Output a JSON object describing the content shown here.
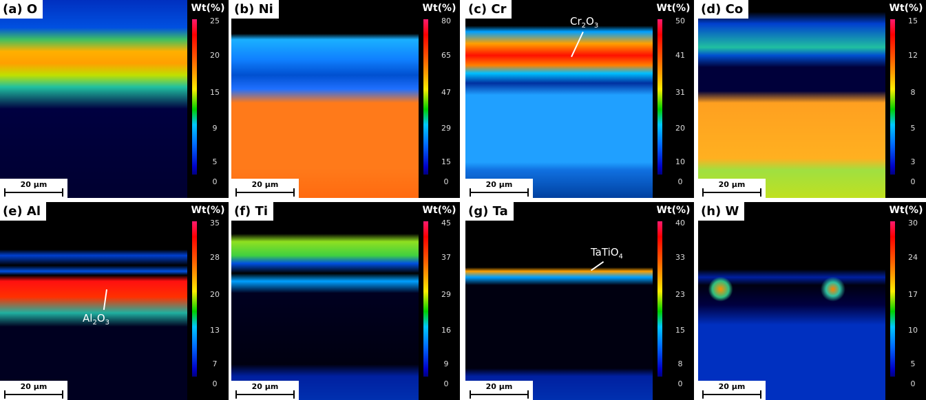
{
  "colorbar_title": "Wt(%)",
  "scale_bar": "20 μm",
  "panels": [
    {
      "label": "(a) O",
      "ticks": [
        "25",
        "20",
        "15",
        "9",
        "5",
        "0"
      ]
    },
    {
      "label": "(b) Ni",
      "ticks": [
        "80",
        "65",
        "47",
        "29",
        "15",
        "0"
      ]
    },
    {
      "label": "(c) Cr",
      "ticks": [
        "50",
        "41",
        "31",
        "20",
        "10",
        "0"
      ],
      "annotation": "Cr2O3"
    },
    {
      "label": "(d) Co",
      "ticks": [
        "15",
        "12",
        "8",
        "5",
        "3",
        "0"
      ]
    },
    {
      "label": "(e) Al",
      "ticks": [
        "35",
        "28",
        "20",
        "13",
        "7",
        "0"
      ],
      "annotation": "Al2O3"
    },
    {
      "label": "(f) Ti",
      "ticks": [
        "45",
        "37",
        "29",
        "16",
        "9",
        "0"
      ]
    },
    {
      "label": "(g) Ta",
      "ticks": [
        "40",
        "33",
        "23",
        "15",
        "8",
        "0"
      ],
      "annotation": "TaTiO4"
    },
    {
      "label": "(h) W",
      "ticks": [
        "30",
        "24",
        "17",
        "10",
        "5",
        "0"
      ]
    }
  ],
  "colors": {
    "high": "#ff1a6e",
    "low": "#000080",
    "background": "#000000"
  }
}
